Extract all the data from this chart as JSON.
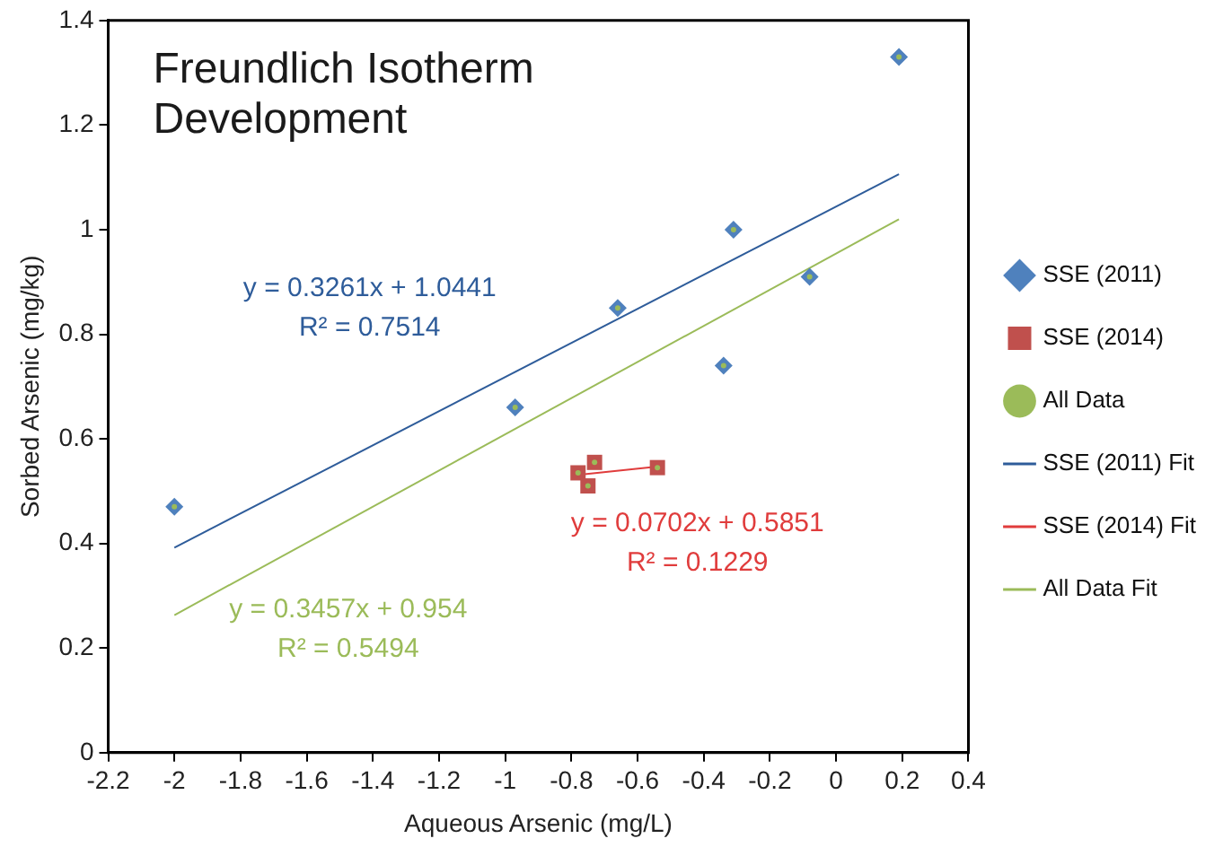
{
  "chart_data": {
    "type": "scatter",
    "title": "Freundlich Isotherm\nDevelopment",
    "xlabel": "Aqueous Arsenic (mg/L)",
    "ylabel": "Sorbed Arsenic (mg/kg)",
    "xlim": [
      -2.2,
      0.4
    ],
    "xticks": [
      -2.2,
      -2,
      -1.8,
      -1.6,
      -1.4,
      -1.2,
      -1,
      -0.8,
      -0.6,
      -0.4,
      -0.2,
      0,
      0.2,
      0.4
    ],
    "ylim": [
      0,
      1.4
    ],
    "yticks": [
      0,
      0.2,
      0.4,
      0.6,
      0.8,
      1,
      1.2,
      1.4
    ],
    "grid": false,
    "legend": "right",
    "series": [
      {
        "name": "SSE (2011)",
        "marker": "diamond",
        "color": "#4f81bd",
        "x": [
          -2.0,
          -0.97,
          -0.66,
          -0.31,
          -0.34,
          -0.08,
          0.19
        ],
        "values": [
          0.47,
          0.66,
          0.85,
          1.0,
          0.74,
          0.91,
          1.33
        ]
      },
      {
        "name": "SSE (2014)",
        "marker": "square",
        "color": "#c0504d",
        "x": [
          -0.78,
          -0.73,
          -0.75,
          -0.54
        ],
        "values": [
          0.535,
          0.555,
          0.51,
          0.545
        ]
      },
      {
        "name": "All Data",
        "marker": "circle",
        "color": "#9bbb59",
        "x": [
          -2.0,
          -0.97,
          -0.66,
          -0.31,
          -0.34,
          -0.08,
          0.19,
          -0.78,
          -0.73,
          -0.75,
          -0.54
        ],
        "values": [
          0.47,
          0.66,
          0.85,
          1.0,
          0.74,
          0.91,
          1.33,
          0.535,
          0.555,
          0.51,
          0.545
        ]
      },
      {
        "name": "SSE (2011) Fit",
        "type": "line",
        "marker": "none",
        "color": "#2e5c9a",
        "x": [
          -2.0,
          0.19
        ],
        "values": [
          0.392,
          1.106
        ]
      },
      {
        "name": "SSE (2014) Fit",
        "type": "line",
        "marker": "none",
        "color": "#e03c3c",
        "x": [
          -0.78,
          -0.54
        ],
        "values": [
          0.531,
          0.547
        ]
      },
      {
        "name": "All Data Fit",
        "type": "line",
        "marker": "none",
        "color": "#9bbb59",
        "x": [
          -2.0,
          0.19
        ],
        "values": [
          0.263,
          1.02
        ]
      }
    ],
    "annotations": [
      "y = 0.3261x + 1.0441\nR² = 0.7514",
      "y = 0.0702x + 0.5851\nR² = 0.1229",
      "y = 0.3457x + 0.954\nR² = 0.5494"
    ]
  }
}
